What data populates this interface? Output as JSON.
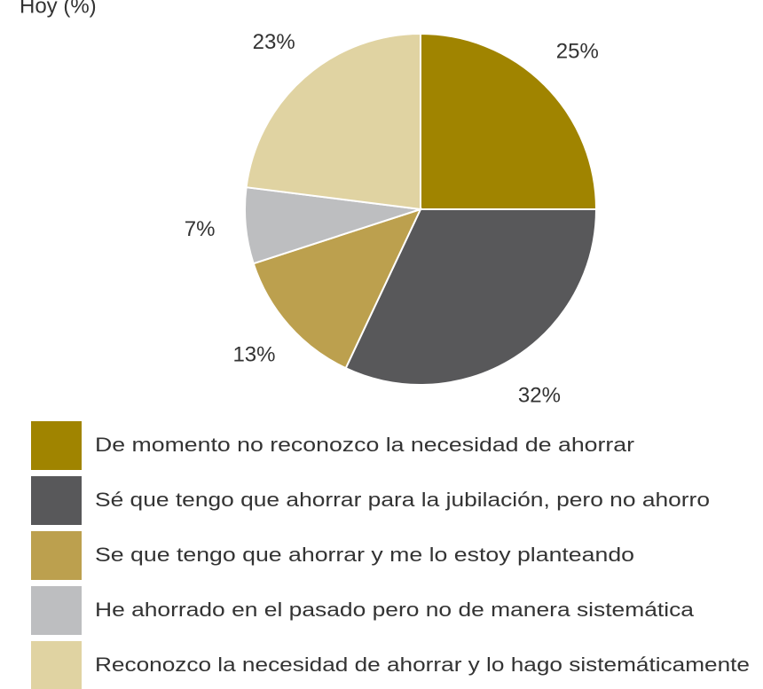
{
  "chart_data": {
    "type": "pie",
    "title": "Hoy (%)",
    "categories": [
      "De momento no reconozco la necesidad de ahorrar",
      "Sé que tengo que ahorrar para la jubilación, pero no ahorro",
      "Se que tengo que ahorrar y me lo estoy planteando",
      "He ahorrado en el pasado pero no de manera sistemática",
      "Reconozco la necesidad de ahorrar y lo hago sistemáticamente"
    ],
    "values": [
      25,
      32,
      13,
      7,
      23
    ],
    "value_labels": [
      "25%",
      "32%",
      "13%",
      "7%",
      "23%"
    ],
    "colors": [
      "#a08400",
      "#58585a",
      "#bca04e",
      "#bdbec0",
      "#e0d3a2"
    ],
    "legend": "bottom"
  }
}
